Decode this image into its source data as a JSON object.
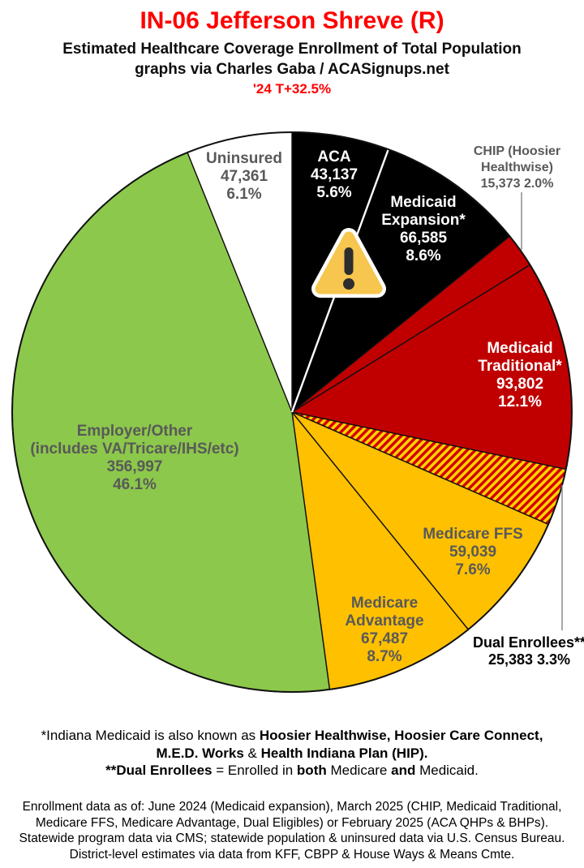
{
  "header": {
    "title": "IN-06 Jefferson Shreve (R)",
    "subtitle": "Estimated Healthcare Coverage Enrollment of Total Population",
    "credit": "graphs via Charles Gaba / ACASignups.net",
    "change_tag": "'24 T+32.5%",
    "title_color": "#FF0000"
  },
  "chart_data": {
    "type": "pie",
    "title": "Estimated Healthcare Coverage Enrollment of Total Population",
    "start_angle_deg": 0,
    "direction": "clockwise",
    "hatch_colors": [
      "#D40000",
      "#FFD400"
    ],
    "slices": [
      {
        "name": "ACA",
        "value": 43137,
        "pct": 5.6,
        "color": "#000000",
        "lines": [
          "ACA",
          "43,137",
          "5.6%"
        ]
      },
      {
        "name": "Medicaid Expansion*",
        "value": 66585,
        "pct": 8.6,
        "color": "#000000",
        "lines": [
          "Medicaid",
          "Expansion*",
          "66,585",
          "8.6%"
        ]
      },
      {
        "name": "CHIP (Hoosier Healthwise)",
        "value": 15373,
        "pct": 2.0,
        "color": "#C00000",
        "lines": [
          "CHIP (Hoosier",
          "Healthwise)",
          "15,373 2.0%"
        ]
      },
      {
        "name": "Medicaid Traditional*",
        "value": 93802,
        "pct": 12.1,
        "color": "#C00000",
        "lines": [
          "Medicaid",
          "Traditional*",
          "93,802",
          "12.1%"
        ]
      },
      {
        "name": "Dual Enrollees**",
        "value": 25383,
        "pct": 3.3,
        "color": "hatch",
        "lines": [
          "Dual Enrollees**",
          "25,383 3.3%"
        ]
      },
      {
        "name": "Medicare FFS",
        "value": 59039,
        "pct": 7.6,
        "color": "#FFC000",
        "lines": [
          "Medicare FFS",
          "59,039",
          "7.6%"
        ]
      },
      {
        "name": "Medicare Advantage",
        "value": 67487,
        "pct": 8.7,
        "color": "#FFC000",
        "lines": [
          "Medicare",
          "Advantage",
          "67,487",
          "8.7%"
        ]
      },
      {
        "name": "Employer/Other (includes VA/Tricare/IHS/etc)",
        "value": 356997,
        "pct": 46.1,
        "color": "#8CC84B",
        "lines": [
          "Employer/Other",
          "(includes VA/Tricare/IHS/etc)",
          "356,997",
          "46.1%"
        ]
      },
      {
        "name": "Uninsured",
        "value": 47361,
        "pct": 6.1,
        "color": "#FFFFFF",
        "lines": [
          "Uninsured",
          "47,361",
          "6.1%"
        ]
      }
    ]
  },
  "footnotes": {
    "lines": [
      [
        {
          "text": "*Indiana Medicaid is also known as ",
          "bold": false
        },
        {
          "text": "Hoosier Healthwise, Hoosier Care Connect,",
          "bold": true
        }
      ],
      [
        {
          "text": "M.E.D. Works",
          "bold": true
        },
        {
          "text": " & ",
          "bold": false
        },
        {
          "text": "Health Indiana Plan (HIP).",
          "bold": true
        }
      ],
      [
        {
          "text": "**Dual Enrollees",
          "bold": true
        },
        {
          "text": " = Enrolled in ",
          "bold": false
        },
        {
          "text": "both",
          "bold": true
        },
        {
          "text": " Medicare ",
          "bold": false
        },
        {
          "text": "and",
          "bold": true
        },
        {
          "text": " Medicaid.",
          "bold": false
        }
      ]
    ]
  },
  "source_note": {
    "lines": [
      "Enrollment data as of: June 2024 (Medicaid expansion), March 2025 (CHIP, Medicaid Traditional,",
      "Medicare FFS, Medicare Advantage, Dual Eligibles) or February 2025 (ACA QHPs & BHPs).",
      "Statewide program data via CMS; statewide population & uninsured data via U.S. Census Bureau.",
      "District-level estimates via data from KFF, CBPP & House Ways & Means Cmte."
    ]
  }
}
